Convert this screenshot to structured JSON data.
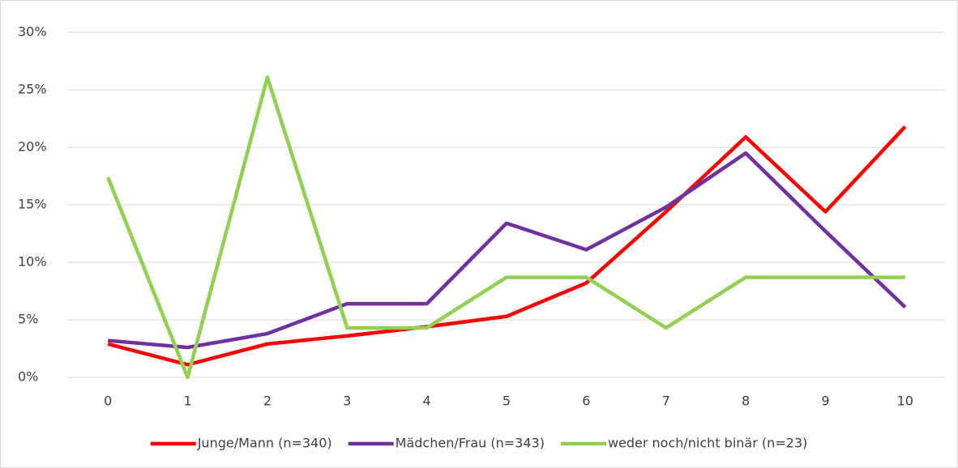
{
  "chart_data": {
    "type": "line",
    "categories": [
      "0",
      "1",
      "2",
      "3",
      "4",
      "5",
      "6",
      "7",
      "8",
      "9",
      "10"
    ],
    "series": [
      {
        "name": "Junge/Mann (n=340)",
        "color": "#ff0000",
        "values": [
          2.9,
          1.1,
          2.9,
          3.6,
          4.4,
          5.3,
          8.2,
          14.4,
          20.9,
          14.4,
          21.8
        ]
      },
      {
        "name": "Mädchen/Frau (n=343)",
        "color": "#7030a0",
        "values": [
          3.2,
          2.6,
          3.8,
          6.4,
          6.4,
          13.4,
          11.1,
          14.8,
          19.5,
          12.7,
          6.1
        ]
      },
      {
        "name": "weder noch/nicht binär (n=23)",
        "color": "#92d050",
        "values": [
          17.4,
          0,
          26.1,
          4.3,
          4.3,
          8.7,
          8.7,
          4.3,
          8.7,
          8.7,
          8.7
        ]
      }
    ],
    "ylim": [
      0,
      30
    ],
    "yticks": [
      {
        "value": 0,
        "label": "0%"
      },
      {
        "value": 5,
        "label": "5%"
      },
      {
        "value": 10,
        "label": "10%"
      },
      {
        "value": 15,
        "label": "15%"
      },
      {
        "value": 20,
        "label": "20%"
      },
      {
        "value": 25,
        "label": "25%"
      },
      {
        "value": 30,
        "label": "30%"
      }
    ],
    "grid": true,
    "legend": "bottom"
  }
}
